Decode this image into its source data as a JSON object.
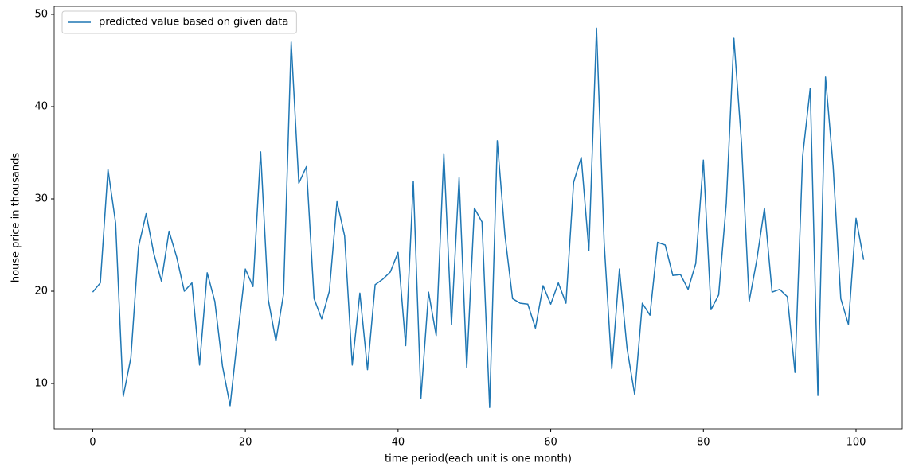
{
  "chart_data": {
    "type": "line",
    "x": [
      0,
      1,
      2,
      3,
      4,
      5,
      6,
      7,
      8,
      9,
      10,
      11,
      12,
      13,
      14,
      15,
      16,
      17,
      18,
      19,
      20,
      21,
      22,
      23,
      24,
      25,
      26,
      27,
      28,
      29,
      30,
      31,
      32,
      33,
      34,
      35,
      36,
      37,
      38,
      39,
      40,
      41,
      42,
      43,
      44,
      45,
      46,
      47,
      48,
      49,
      50,
      51,
      52,
      53,
      54,
      55,
      56,
      57,
      58,
      59,
      60,
      61,
      62,
      63,
      64,
      65,
      66,
      67,
      68,
      69,
      70,
      71,
      72,
      73,
      74,
      75,
      76,
      77,
      78,
      79,
      80,
      81,
      82,
      83,
      84,
      85,
      86,
      87,
      88,
      89,
      90,
      91,
      92,
      93,
      94,
      95,
      96,
      97,
      98,
      99,
      100,
      101
    ],
    "series": [
      {
        "name": "predicted value based on given data",
        "color": "#1f77b4",
        "values": [
          19.9,
          20.9,
          33.2,
          27.4,
          8.6,
          12.8,
          24.8,
          28.4,
          24.1,
          21.1,
          26.5,
          23.7,
          20.0,
          20.9,
          12.0,
          22.0,
          18.9,
          11.9,
          7.6,
          15.2,
          22.4,
          20.5,
          35.1,
          19.1,
          14.6,
          19.7,
          47.0,
          31.7,
          33.5,
          19.2,
          17.0,
          20.0,
          29.7,
          26.0,
          12.0,
          19.8,
          11.5,
          20.7,
          21.3,
          22.1,
          24.2,
          14.1,
          31.9,
          8.4,
          19.9,
          15.2,
          34.9,
          16.4,
          32.3,
          11.7,
          29.0,
          27.5,
          7.4,
          36.3,
          26.1,
          19.2,
          18.7,
          18.6,
          16.0,
          20.6,
          18.6,
          20.9,
          18.7,
          31.8,
          34.5,
          24.4,
          48.5,
          25.3,
          11.6,
          22.4,
          13.8,
          8.8,
          18.7,
          17.4,
          25.3,
          25.0,
          21.7,
          21.8,
          20.2,
          23.0,
          34.2,
          18.0,
          19.6,
          29.5,
          47.4,
          36.0,
          18.9,
          23.4,
          29.0,
          19.9,
          20.2,
          19.4,
          11.2,
          34.6,
          42.0,
          8.7,
          43.2,
          33.5,
          19.2,
          16.4,
          27.9,
          23.4
        ]
      }
    ],
    "xlabel": "time period(each unit is one month)",
    "ylabel": "house price in thousands",
    "xlim": [
      -5.05,
      106.05
    ],
    "xticks": [
      0,
      20,
      40,
      60,
      80,
      100
    ],
    "ylim": [
      5.09,
      50.86
    ],
    "yticks": [
      10,
      20,
      30,
      40,
      50
    ],
    "legend": "upper left",
    "grid": false
  }
}
